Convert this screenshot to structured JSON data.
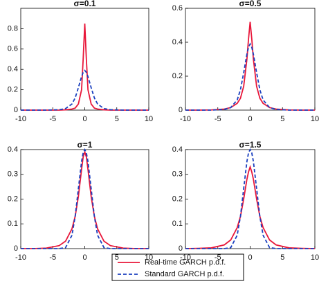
{
  "chart_data": [
    {
      "type": "line",
      "title": "σ=0.1",
      "x": [
        -10,
        -8,
        -6,
        -4,
        -3,
        -2,
        -1.5,
        -1,
        -0.5,
        -0.25,
        0,
        0.25,
        0.5,
        1,
        1.5,
        2,
        3,
        4,
        6,
        8,
        10
      ],
      "xlim": [
        -10,
        10
      ],
      "xticks": [
        -10,
        -5,
        0,
        5,
        10
      ],
      "ylim": [
        0,
        1
      ],
      "yticks": [
        0,
        0.2,
        0.4,
        0.6,
        0.8
      ],
      "series": [
        {
          "name": "Real-time GARCH p.d.f.",
          "color": "#e8173a",
          "dash": false,
          "values": [
            0,
            0,
            0,
            0,
            0.003,
            0.01,
            0.02,
            0.06,
            0.2,
            0.5,
            0.85,
            0.5,
            0.2,
            0.06,
            0.02,
            0.01,
            0.003,
            0,
            0,
            0,
            0
          ]
        },
        {
          "name": "Standard GARCH p.d.f.",
          "color": "#1a3fbf",
          "dash": true,
          "values": [
            0,
            0,
            0,
            0.004,
            0.015,
            0.06,
            0.12,
            0.22,
            0.33,
            0.37,
            0.39,
            0.37,
            0.33,
            0.22,
            0.12,
            0.06,
            0.015,
            0.004,
            0,
            0,
            0
          ]
        }
      ]
    },
    {
      "type": "line",
      "title": "σ=0.5",
      "x": [
        -10,
        -8,
        -6,
        -4,
        -3,
        -2,
        -1.5,
        -1,
        -0.5,
        -0.25,
        0,
        0.25,
        0.5,
        1,
        1.5,
        2,
        3,
        4,
        6,
        8,
        10
      ],
      "xlim": [
        -10,
        10
      ],
      "xticks": [
        -10,
        -5,
        0,
        5,
        10
      ],
      "ylim": [
        0,
        0.6
      ],
      "yticks": [
        0,
        0.2,
        0.4,
        0.6
      ],
      "series": [
        {
          "color": "#e8173a",
          "dash": false,
          "values": [
            0,
            0,
            0.001,
            0.006,
            0.015,
            0.04,
            0.07,
            0.14,
            0.3,
            0.42,
            0.52,
            0.42,
            0.3,
            0.14,
            0.07,
            0.04,
            0.015,
            0.006,
            0.001,
            0,
            0
          ]
        },
        {
          "color": "#1a3fbf",
          "dash": true,
          "values": [
            0,
            0,
            0,
            0.004,
            0.015,
            0.06,
            0.12,
            0.22,
            0.33,
            0.37,
            0.39,
            0.37,
            0.33,
            0.22,
            0.12,
            0.06,
            0.015,
            0.004,
            0,
            0,
            0
          ]
        }
      ]
    },
    {
      "type": "line",
      "title": "σ=1",
      "x": [
        -10,
        -8,
        -6,
        -4,
        -3,
        -2,
        -1.5,
        -1,
        -0.5,
        -0.25,
        0,
        0.25,
        0.5,
        1,
        1.5,
        2,
        3,
        4,
        6,
        8,
        10
      ],
      "xlim": [
        -10,
        10
      ],
      "xticks": [
        -10,
        -5,
        0,
        5,
        10
      ],
      "ylim": [
        0,
        0.4
      ],
      "yticks": [
        0,
        0.1,
        0.2,
        0.3,
        0.4
      ],
      "series": [
        {
          "color": "#e8173a",
          "dash": false,
          "values": [
            0,
            0,
            0.002,
            0.012,
            0.03,
            0.08,
            0.13,
            0.21,
            0.32,
            0.37,
            0.39,
            0.37,
            0.32,
            0.21,
            0.13,
            0.08,
            0.03,
            0.012,
            0.002,
            0,
            0
          ]
        },
        {
          "color": "#1a3fbf",
          "dash": true,
          "values": [
            0,
            0,
            0,
            0,
            0.004,
            0.054,
            0.13,
            0.242,
            0.352,
            0.387,
            0.4,
            0.387,
            0.352,
            0.242,
            0.13,
            0.054,
            0.004,
            0,
            0,
            0,
            0
          ]
        }
      ]
    },
    {
      "type": "line",
      "title": "σ=1.5",
      "x": [
        -10,
        -8,
        -6,
        -4,
        -3,
        -2,
        -1.5,
        -1,
        -0.5,
        -0.25,
        0,
        0.25,
        0.5,
        1,
        1.5,
        2,
        3,
        4,
        6,
        8,
        10
      ],
      "xlim": [
        -10,
        10
      ],
      "xticks": [
        -10,
        -5,
        0,
        5,
        10
      ],
      "ylim": [
        0,
        0.4
      ],
      "yticks": [
        0,
        0.1,
        0.2,
        0.3,
        0.4
      ],
      "series": [
        {
          "color": "#e8173a",
          "dash": false,
          "values": [
            0,
            0.001,
            0.003,
            0.015,
            0.035,
            0.085,
            0.13,
            0.2,
            0.28,
            0.31,
            0.33,
            0.31,
            0.28,
            0.2,
            0.13,
            0.085,
            0.035,
            0.015,
            0.003,
            0.001,
            0
          ]
        },
        {
          "color": "#1a3fbf",
          "dash": true,
          "values": [
            0,
            0,
            0,
            0,
            0.004,
            0.054,
            0.13,
            0.242,
            0.352,
            0.387,
            0.4,
            0.387,
            0.352,
            0.242,
            0.13,
            0.054,
            0.004,
            0,
            0,
            0,
            0
          ]
        }
      ]
    }
  ]
}
